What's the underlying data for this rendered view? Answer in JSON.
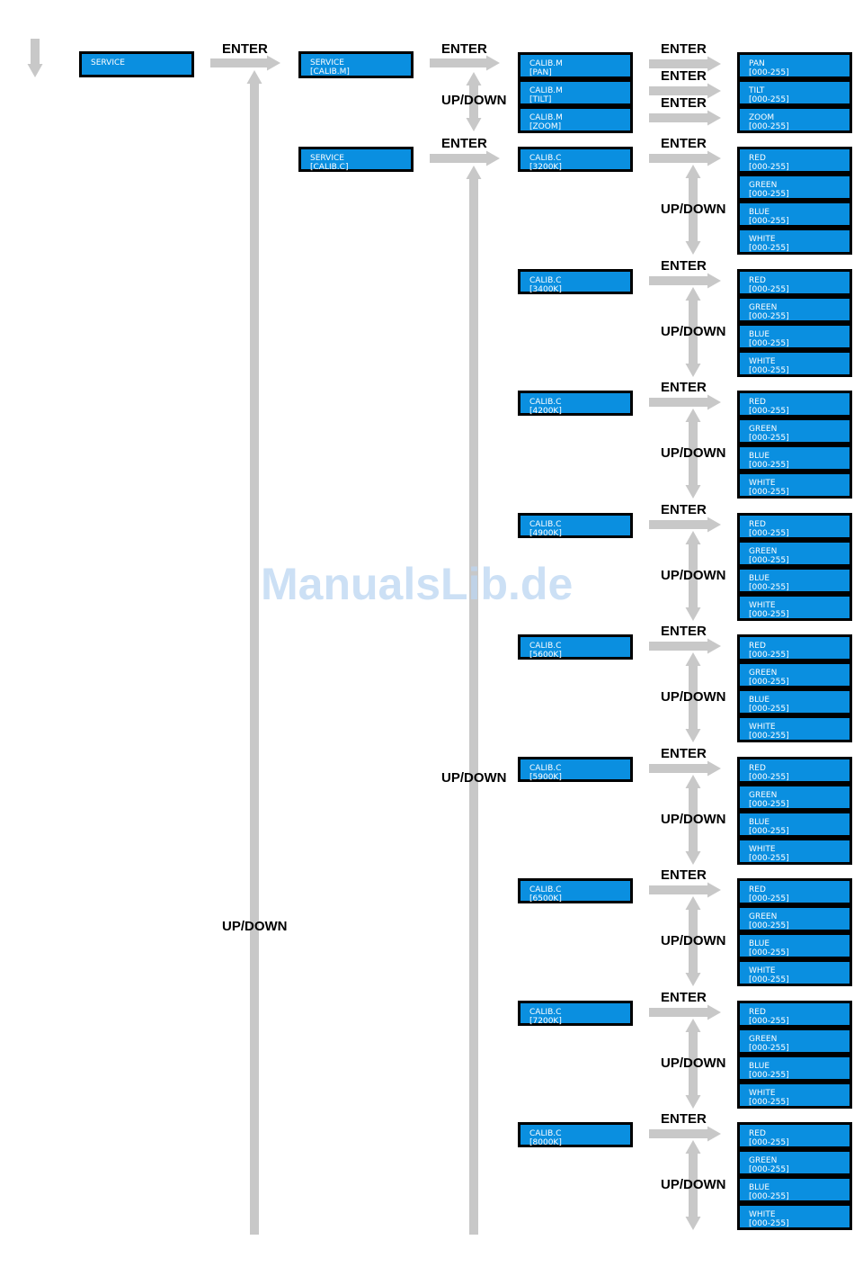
{
  "watermark": "ManualsLib.de",
  "labels": {
    "enter": "ENTER",
    "updown": "UP/DOWN"
  },
  "service": "SERVICE",
  "submenus": [
    "SERVICE\n[CALIB.M]",
    "SERVICE\n[CALIB.C]"
  ],
  "calib_m": {
    "items": [
      "CALIB.M\n[PAN]",
      "CALIB.M\n[TILT]",
      "CALIB.M\n[ZOOM]"
    ],
    "values": [
      "PAN\n[000-255]",
      "TILT\n[000-255]",
      "ZOOM\n[000-255]"
    ]
  },
  "calib_c": {
    "temps": [
      "CALIB.C\n[3200K]",
      "CALIB.C\n[3400K]",
      "CALIB.C\n[4200K]",
      "CALIB.C\n[4900K]",
      "CALIB.C\n[5600K]",
      "CALIB.C\n[5900K]",
      "CALIB.C\n[6500K]",
      "CALIB.C\n[7200K]",
      "CALIB.C\n[8000K]"
    ],
    "channels": [
      "RED\n[000-255]",
      "GREEN\n[000-255]",
      "BLUE\n[000-255]",
      "WHITE\n[000-255]"
    ]
  },
  "colors": {
    "box": "#0a8fe0",
    "arrow": "#c8c8c8"
  }
}
